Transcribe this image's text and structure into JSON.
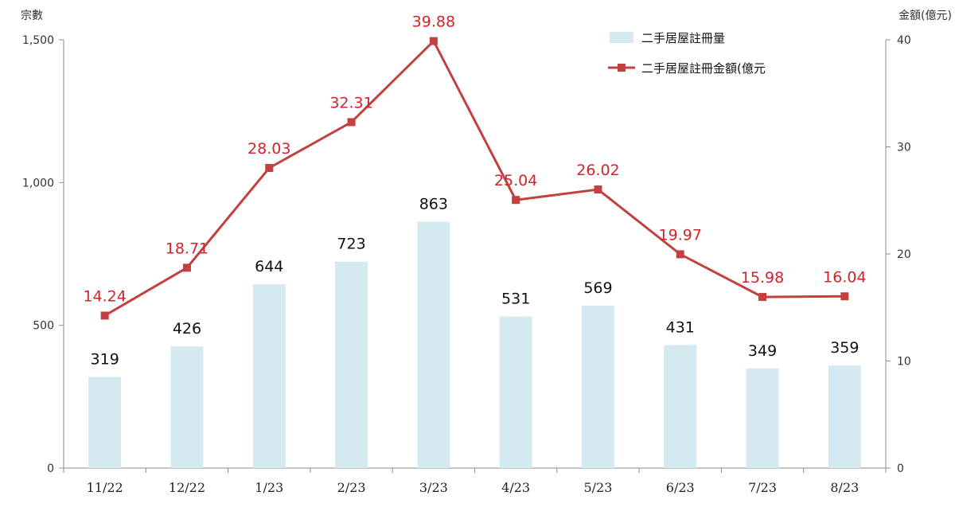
{
  "chart_data": {
    "type": "bar",
    "categories": [
      "11/22",
      "12/22",
      "1/23",
      "2/23",
      "3/23",
      "4/23",
      "5/23",
      "6/23",
      "7/23",
      "8/23"
    ],
    "series": [
      {
        "name": "二手居屋註冊量",
        "type": "bar",
        "axis": "left",
        "values": [
          319,
          426,
          644,
          723,
          863,
          531,
          569,
          431,
          349,
          359
        ],
        "labels": [
          "319",
          "426",
          "644",
          "723",
          "863",
          "531",
          "569",
          "431",
          "349",
          "359"
        ]
      },
      {
        "name": "二手居屋註冊金額(億元",
        "type": "line",
        "axis": "right",
        "values": [
          14.24,
          18.71,
          28.03,
          32.31,
          39.88,
          25.04,
          26.02,
          19.97,
          15.98,
          16.04
        ],
        "labels": [
          "14.24",
          "18.71",
          "28.03",
          "32.31",
          "39.88",
          "25.04",
          "26.02",
          "19.97",
          "15.98",
          "16.04"
        ]
      }
    ],
    "y_left": {
      "label": "宗數",
      "ylim": [
        0,
        1500
      ],
      "ticks": [
        0,
        500,
        1000,
        1500
      ],
      "tick_labels": [
        "0",
        "500",
        "1,000",
        "1,500"
      ]
    },
    "y_right": {
      "label": "金額(億元)",
      "ylim": [
        0,
        40
      ],
      "ticks": [
        0,
        10,
        20,
        30,
        40
      ],
      "tick_labels": [
        "0",
        "10",
        "20",
        "30",
        "40"
      ]
    },
    "grid": false,
    "legend_position": "top-right",
    "colors": {
      "bar": "#d4eaf0",
      "line": "#c2403f",
      "line_label": "#d0242b",
      "axis": "#8c8c8c"
    }
  }
}
